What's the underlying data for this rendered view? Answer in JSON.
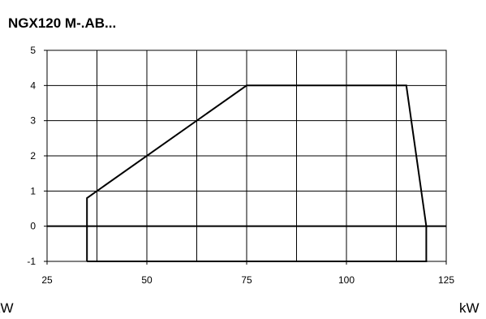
{
  "chart_data": {
    "type": "line",
    "title": "NGX120 M-.AB...",
    "xlabel": "kW",
    "ylabel": "",
    "xlim": [
      25,
      125
    ],
    "ylim": [
      -1,
      5
    ],
    "xticks": [
      "25",
      "50",
      "75",
      "100",
      "125"
    ],
    "yticks": [
      "5",
      "4",
      "3",
      "2",
      "1",
      "0",
      "-1"
    ],
    "grid": true,
    "series": [
      {
        "points": [
          [
            35,
            -1
          ],
          [
            35,
            0.8
          ],
          [
            37.5,
            1
          ],
          [
            75,
            4
          ],
          [
            115,
            4
          ],
          [
            120,
            0
          ],
          [
            120,
            -1
          ],
          [
            35,
            -1
          ]
        ]
      }
    ],
    "reference_lines": [
      {
        "axis": "y",
        "value": 0
      }
    ]
  },
  "labels": {
    "unit_left": "kW",
    "unit_right": "kW"
  }
}
